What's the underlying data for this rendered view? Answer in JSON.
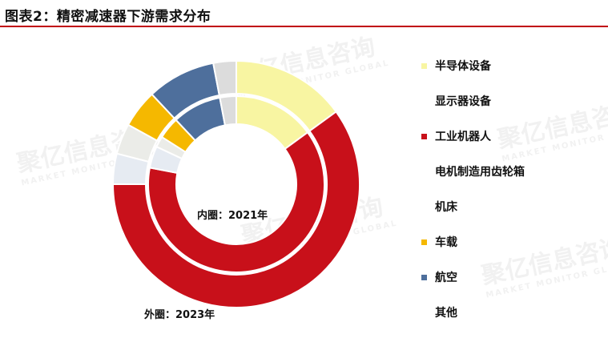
{
  "title": "图表2：精密减速器下游需求分布",
  "watermark": {
    "text": "聚亿信息咨询",
    "sub": "MARKET MONITOR GLOBAL"
  },
  "chart_data": {
    "type": "pie",
    "subtype": "donut",
    "categories": [
      "半导体设备",
      "显示器设备",
      "工业机器人",
      "电机制造用齿轮箱",
      "机床",
      "车载",
      "航空",
      "其他"
    ],
    "colors": [
      "#f8f5a2",
      "#f7f7d8",
      "#c8101a",
      "#e6ebf2",
      "#ebece8",
      "#f5b800",
      "#4e6f9c",
      "#dcdcdc"
    ],
    "legend_position": "right",
    "series": [
      {
        "name": "内圈：2021年",
        "ring": "inner",
        "values": [
          15,
          0,
          63,
          4,
          2,
          4,
          9,
          3
        ]
      },
      {
        "name": "外圈：2023年",
        "ring": "outer",
        "values": [
          15,
          0,
          60,
          4,
          4,
          5,
          9,
          3
        ]
      }
    ],
    "inner_label": "内圈：2021年",
    "outer_label": "外圈：2023年"
  }
}
